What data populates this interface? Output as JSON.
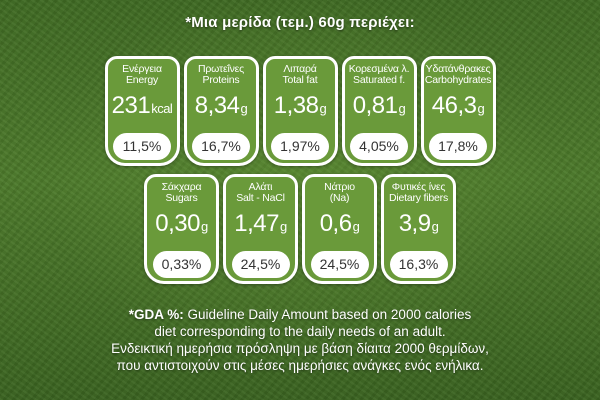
{
  "header": {
    "title": "*Μια μερίδα (τεμ.) 60g περιέχει:"
  },
  "row1": [
    {
      "label_gr": "Ενέργεια",
      "label_en": "Energy",
      "value": "231",
      "unit": "kcal",
      "pct": "11,5%"
    },
    {
      "label_gr": "Πρωτεΐνες",
      "label_en": "Proteins",
      "value": "8,34",
      "unit": "g",
      "pct": "16,7%"
    },
    {
      "label_gr": "Λιπαρά",
      "label_en": "Total fat",
      "value": "1,38",
      "unit": "g",
      "pct": "1,97%"
    },
    {
      "label_gr": "Κορεσμένα λ.",
      "label_en": "Saturated f.",
      "value": "0,81",
      "unit": "g",
      "pct": "4,05%"
    },
    {
      "label_gr": "Υδατάνθρακες",
      "label_en": "Carbohydrates",
      "value": "46,3",
      "unit": "g",
      "pct": "17,8%"
    }
  ],
  "row2": [
    {
      "label_gr": "Σάκχαρα",
      "label_en": "Sugars",
      "value": "0,30",
      "unit": "g",
      "pct": "0,33%"
    },
    {
      "label_gr": "Αλάτι",
      "label_en": "Salt - NaCl",
      "value": "1,47",
      "unit": "g",
      "pct": "24,5%"
    },
    {
      "label_gr": "Νάτριο",
      "label_en": "(Na)",
      "value": "0,6",
      "unit": "g",
      "pct": "24,5%"
    },
    {
      "label_gr": "Φυτικές ίνες",
      "label_en": "Dietary fibers",
      "value": "3,9",
      "unit": "g",
      "pct": "16,3%"
    }
  ],
  "footer": {
    "gda_label": "*GDA %:",
    "line1_rest": "Guideline Daily Amount based on 2000 calories",
    "line2": "diet corresponding to the daily needs of an adult.",
    "line3": "Ενδεικτική ημερήσια πρόσληψη με βάση δίαιτα 2000 θερμίδων,",
    "line4": "που αντιστοιχούν στις μέσες ημερήσιες ανάγκες ενός ενήλικα."
  }
}
